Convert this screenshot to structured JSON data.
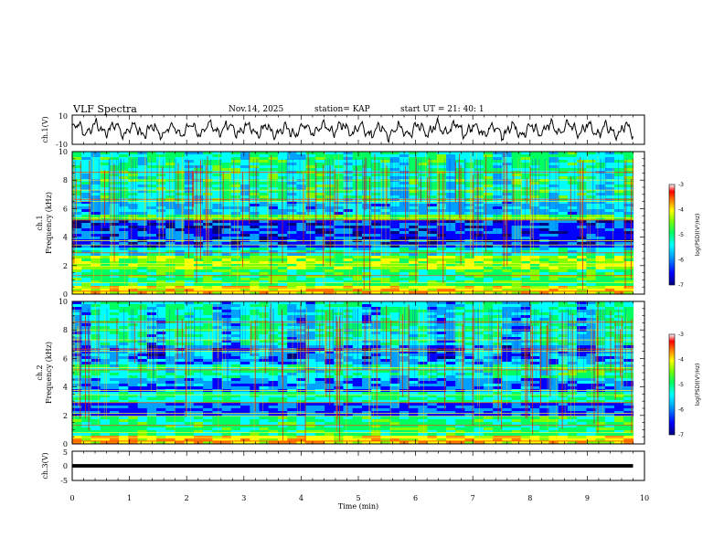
{
  "header": {
    "title": "VLF Spectra",
    "date": "Nov.14, 2025",
    "station": "station= KAP",
    "start": "start  UT =   21: 40: 1"
  },
  "chart_data": [
    {
      "type": "line",
      "name": "ch1-waveform",
      "ylabel": "ch.1(V)",
      "ylim": [
        -10,
        10
      ],
      "yticks": [
        "10",
        "-10"
      ],
      "xlim": [
        0,
        10
      ],
      "note": "oscillating waveform roughly between -6 and 6 V, recorded from 0 to about 9.8 min"
    },
    {
      "type": "heatmap",
      "name": "ch1-spectrogram",
      "ylabel_line1": "ch.1",
      "ylabel_line2": "Frequency (kHz)",
      "ylim": [
        0,
        10
      ],
      "yticks": [
        "0",
        "2",
        "4",
        "6",
        "8",
        "10"
      ],
      "xlim": [
        0,
        10
      ],
      "data_end_min": 9.8,
      "colorbar": {
        "label": "log(PSD)(V²/Hz)",
        "range": [
          -7,
          -3
        ],
        "ticks": [
          "-3",
          "-4",
          "-5",
          "-6",
          "-7"
        ],
        "colors": [
          "#000080",
          "#0000ff",
          "#00a0ff",
          "#00ffff",
          "#00ff60",
          "#80ff00",
          "#ffff00",
          "#ff8000",
          "#ff0000",
          "#ffffff"
        ]
      }
    },
    {
      "type": "heatmap",
      "name": "ch2-spectrogram",
      "ylabel_line1": "ch.2",
      "ylabel_line2": "Frequency (kHz)",
      "ylim": [
        0,
        10
      ],
      "yticks": [
        "0",
        "2",
        "4",
        "6",
        "8",
        "10"
      ],
      "xlim": [
        0,
        10
      ],
      "data_end_min": 9.8,
      "colorbar": {
        "label": "log(PSD)(V²/Hz)",
        "range": [
          -7,
          -3
        ],
        "ticks": [
          "-3",
          "-4",
          "-5",
          "-6",
          "-7"
        ],
        "colors": [
          "#000080",
          "#0000ff",
          "#00a0ff",
          "#00ffff",
          "#00ff60",
          "#80ff00",
          "#ffff00",
          "#ff8000",
          "#ff0000",
          "#ffffff"
        ]
      }
    },
    {
      "type": "line",
      "name": "ch3-waveform",
      "ylabel": "ch.3(V)",
      "ylim": [
        -5,
        5
      ],
      "yticks": [
        "5",
        "0",
        "-5"
      ],
      "xlim": [
        0,
        10
      ],
      "value_band": [
        -0.6,
        0.6
      ],
      "note": "flat thick black band near 0 V"
    }
  ],
  "xaxis": {
    "label": "Time  (min)",
    "ticks": [
      "0",
      "1",
      "2",
      "3",
      "4",
      "5",
      "6",
      "7",
      "8",
      "9",
      "10"
    ]
  }
}
